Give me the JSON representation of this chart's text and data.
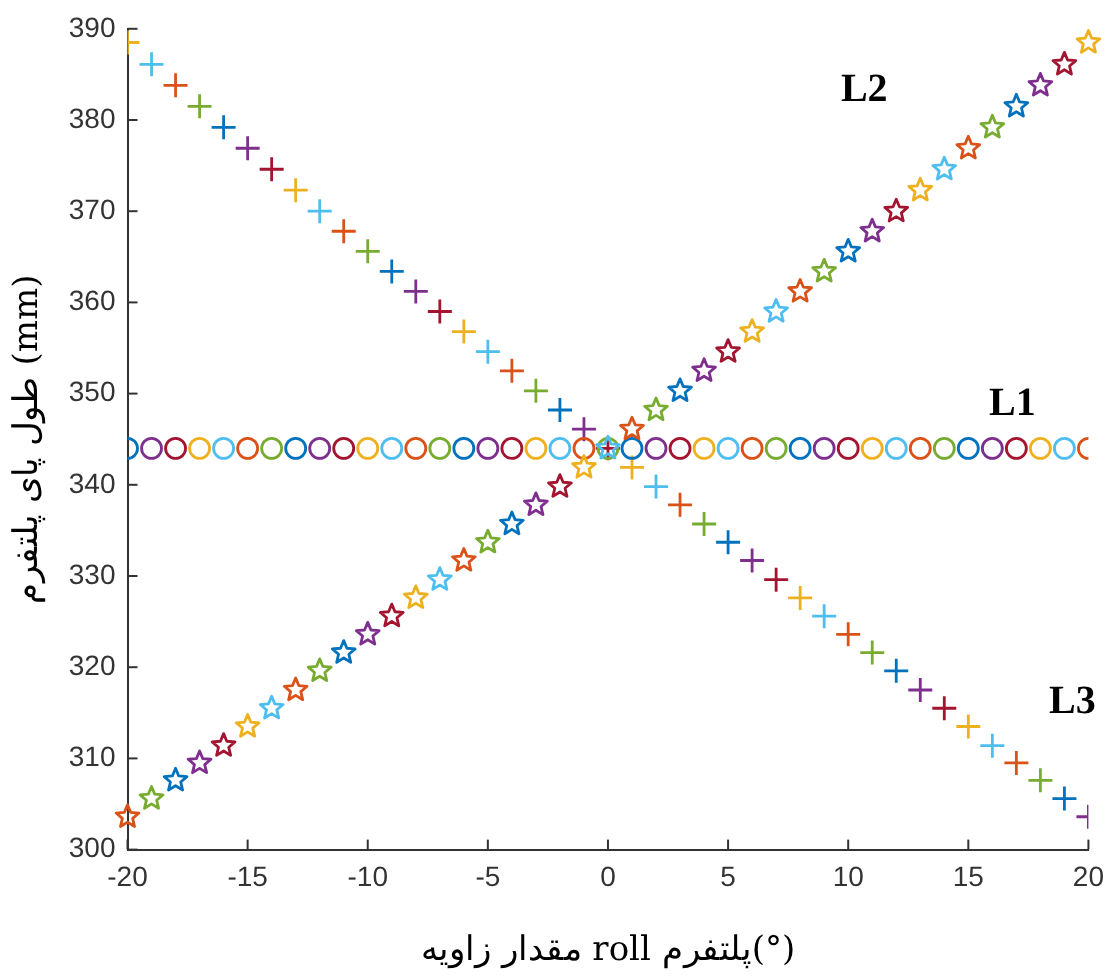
{
  "chart_data": {
    "type": "scatter",
    "xlabel": "مقدار زاویه roll پلتفرم(°)",
    "ylabel": "طول پای پلتفرم (mm)",
    "x": [
      -20,
      -19,
      -18,
      -17,
      -16,
      -15,
      -14,
      -13,
      -12,
      -11,
      -10,
      -9,
      -8,
      -7,
      -6,
      -5,
      -4,
      -3,
      -2,
      -1,
      0,
      1,
      2,
      3,
      4,
      5,
      6,
      7,
      8,
      9,
      10,
      11,
      12,
      13,
      14,
      15,
      16,
      17,
      18,
      19,
      20
    ],
    "xlim": [
      -20,
      20
    ],
    "xticks": [
      -20,
      -15,
      -10,
      -5,
      0,
      5,
      10,
      15,
      20
    ],
    "ylim": [
      300,
      390
    ],
    "yticks": [
      300,
      310,
      320,
      330,
      340,
      350,
      360,
      370,
      380,
      390
    ],
    "grid": false,
    "legend": false,
    "series": [
      {
        "name": "L1",
        "marker": "circle",
        "values": [
          344,
          344,
          344,
          344,
          344,
          344,
          344,
          344,
          344,
          344,
          344,
          344,
          344,
          344,
          344,
          344,
          344,
          344,
          344,
          344,
          344,
          344,
          344,
          344,
          344,
          344,
          344,
          344,
          344,
          344,
          344,
          344,
          344,
          344,
          344,
          344,
          344,
          344,
          344,
          344,
          344
        ],
        "colors": [
          "#0072bd",
          "#7e2f8e",
          "#a2142f",
          "#edb120",
          "#4dbeee",
          "#d95319",
          "#77ac30",
          "#0072bd",
          "#7e2f8e",
          "#a2142f",
          "#edb120",
          "#4dbeee",
          "#d95319",
          "#77ac30",
          "#0072bd",
          "#7e2f8e",
          "#a2142f",
          "#edb120",
          "#4dbeee",
          "#d95319",
          "#77ac30",
          "#0072bd",
          "#7e2f8e",
          "#a2142f",
          "#edb120",
          "#4dbeee",
          "#d95319",
          "#77ac30",
          "#0072bd",
          "#7e2f8e",
          "#a2142f",
          "#edb120",
          "#4dbeee",
          "#d95319",
          "#77ac30",
          "#0072bd",
          "#7e2f8e",
          "#a2142f",
          "#edb120",
          "#4dbeee",
          "#d95319"
        ]
      },
      {
        "name": "L2",
        "marker": "star",
        "values": [
          303.6,
          305.6,
          307.6,
          309.5,
          311.4,
          313.5,
          315.5,
          317.5,
          319.6,
          321.6,
          323.6,
          325.6,
          327.6,
          329.6,
          331.7,
          333.7,
          335.7,
          337.8,
          339.8,
          341.9,
          344,
          346.1,
          348.2,
          350.3,
          352.5,
          354.6,
          356.8,
          359,
          361.2,
          363.4,
          365.6,
          367.8,
          370,
          372.3,
          374.6,
          376.9,
          379.2,
          381.5,
          383.8,
          386.1,
          388.5
        ],
        "colors": [
          "#d95319",
          "#77ac30",
          "#0072bd",
          "#7e2f8e",
          "#a2142f",
          "#edb120",
          "#4dbeee",
          "#d95319",
          "#77ac30",
          "#0072bd",
          "#7e2f8e",
          "#a2142f",
          "#edb120",
          "#4dbeee",
          "#d95319",
          "#77ac30",
          "#0072bd",
          "#7e2f8e",
          "#a2142f",
          "#edb120",
          "#4dbeee",
          "#d95319",
          "#77ac30",
          "#0072bd",
          "#7e2f8e",
          "#a2142f",
          "#edb120",
          "#4dbeee",
          "#d95319",
          "#77ac30",
          "#0072bd",
          "#7e2f8e",
          "#a2142f",
          "#edb120",
          "#4dbeee",
          "#d95319",
          "#77ac30",
          "#0072bd",
          "#7e2f8e",
          "#a2142f",
          "#edb120"
        ]
      },
      {
        "name": "L3",
        "marker": "cross",
        "values": [
          388.5,
          386.1,
          383.8,
          381.5,
          379.2,
          376.9,
          374.6,
          372.3,
          370,
          367.8,
          365.6,
          363.4,
          361.2,
          359,
          356.8,
          354.6,
          352.5,
          350.3,
          348.2,
          346.1,
          344,
          341.9,
          339.8,
          337.8,
          335.7,
          333.7,
          331.7,
          329.6,
          327.6,
          325.6,
          323.6,
          321.6,
          319.6,
          317.5,
          315.5,
          313.5,
          311.4,
          309.5,
          307.6,
          305.6,
          303.6
        ],
        "colors": [
          "#edb120",
          "#4dbeee",
          "#d95319",
          "#77ac30",
          "#0072bd",
          "#7e2f8e",
          "#a2142f",
          "#edb120",
          "#4dbeee",
          "#d95319",
          "#77ac30",
          "#0072bd",
          "#7e2f8e",
          "#a2142f",
          "#edb120",
          "#4dbeee",
          "#d95319",
          "#77ac30",
          "#0072bd",
          "#7e2f8e",
          "#a2142f",
          "#edb120",
          "#4dbeee",
          "#d95319",
          "#77ac30",
          "#0072bd",
          "#7e2f8e",
          "#a2142f",
          "#edb120",
          "#4dbeee",
          "#d95319",
          "#77ac30",
          "#0072bd",
          "#7e2f8e",
          "#a2142f",
          "#edb120",
          "#4dbeee",
          "#d95319",
          "#77ac30",
          "#0072bd",
          "#7e2f8e"
        ]
      }
    ]
  }
}
